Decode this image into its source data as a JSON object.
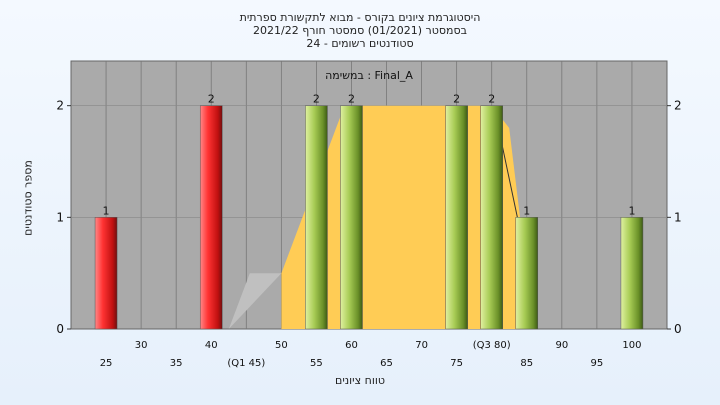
{
  "title_lines": [
    "היסטוגרמת ציונים בקורס - מבוא לתקשורת ספרתית",
    "בסמסטר  (01/2021)  סמסטר חורף 2021/22",
    "24 - סטודנטים רשומים"
  ],
  "colors": {
    "plot_bg": "#aaaaaa",
    "red_bar": "#e82020",
    "green_bar": "#9cc24a",
    "iqr_fill": "#ffcc55",
    "grey_fill": "#c0c0c0"
  },
  "chart_data": {
    "type": "bar",
    "subtitle": "במשימה : Final_A",
    "xlabel": "טווח ציונים",
    "ylabel": "מספר סטודנטים",
    "xlim": [
      20,
      105
    ],
    "ylim": [
      0,
      2.4
    ],
    "x_ticks": [
      "25",
      "30",
      "35",
      "40",
      "(Q1 45)",
      "50",
      "55",
      "60",
      "65",
      "70",
      "75",
      "(Q3 80)",
      "85",
      "90",
      "95",
      "100"
    ],
    "y_ticks": [
      0,
      1,
      2
    ],
    "grid": true,
    "bars": [
      {
        "x": 25,
        "value": 1,
        "label": "1",
        "color": "red"
      },
      {
        "x": 40,
        "value": 2,
        "label": "2",
        "color": "red"
      },
      {
        "x": 55,
        "value": 2,
        "label": "2",
        "color": "green"
      },
      {
        "x": 60,
        "value": 2,
        "label": "2",
        "color": "green"
      },
      {
        "x": 75,
        "value": 2,
        "label": "2",
        "color": "green"
      },
      {
        "x": 80,
        "value": 2,
        "label": "2",
        "color": "green"
      },
      {
        "x": 85,
        "value": 1,
        "label": "1",
        "color": "green"
      },
      {
        "x": 100,
        "value": 1,
        "label": "1",
        "color": "green"
      }
    ],
    "grey_area": [
      [
        42.5,
        0
      ],
      [
        45.5,
        0.5
      ],
      [
        50,
        0.5
      ]
    ],
    "iqr_area": [
      [
        50,
        0
      ],
      [
        50,
        0.5
      ],
      [
        59,
        2
      ],
      [
        80,
        2
      ],
      [
        82.5,
        1.8
      ],
      [
        85,
        0.5
      ],
      [
        85,
        0
      ]
    ],
    "whisker_line": [
      [
        80.3,
        2
      ],
      [
        85,
        0.6
      ]
    ]
  }
}
